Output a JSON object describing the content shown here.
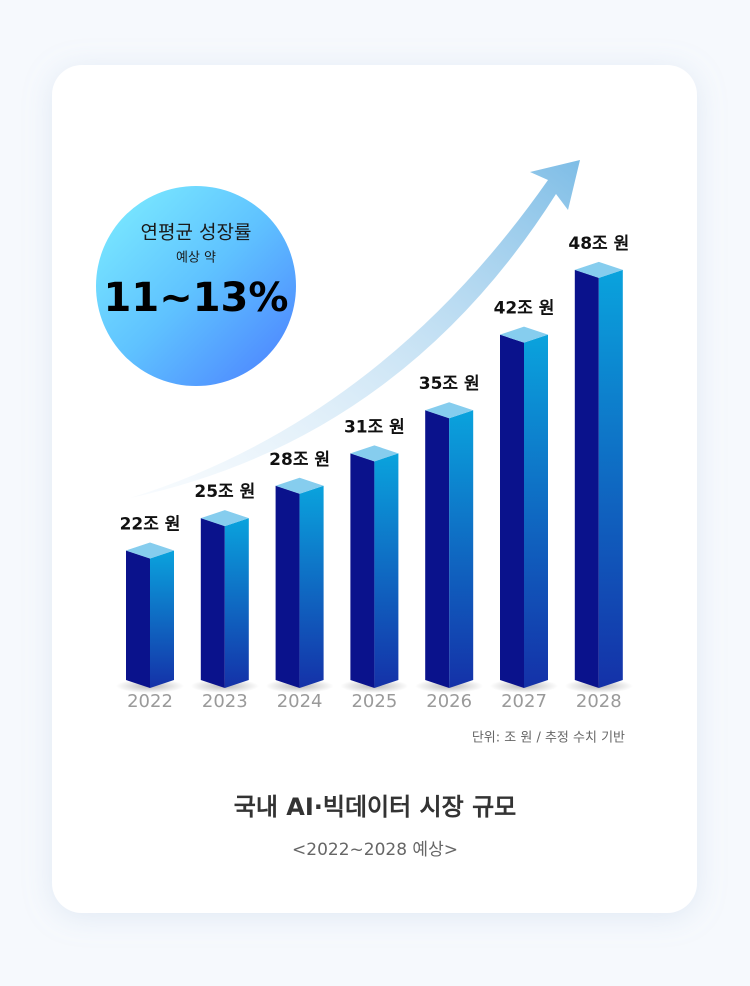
{
  "chart_data": {
    "type": "bar",
    "title": "국내 AI·빅데이터 시장 규모",
    "subtitle": "<2022~2028 예상>",
    "note": "단위: 조 원 / 추정 수치 기반",
    "callout": {
      "title": "연평균 성장률",
      "subtitle": "예상 약",
      "value": "11~13%"
    },
    "categories": [
      "2022",
      "2023",
      "2024",
      "2025",
      "2026",
      "2027",
      "2028"
    ],
    "values": [
      22,
      25,
      28,
      31,
      35,
      42,
      48
    ],
    "value_labels": [
      "22조 원",
      "25조 원",
      "28조 원",
      "31조 원",
      "35조 원",
      "42조 원",
      "48조 원"
    ],
    "color": "#0a128c",
    "ylim": [
      10,
      58
    ]
  }
}
